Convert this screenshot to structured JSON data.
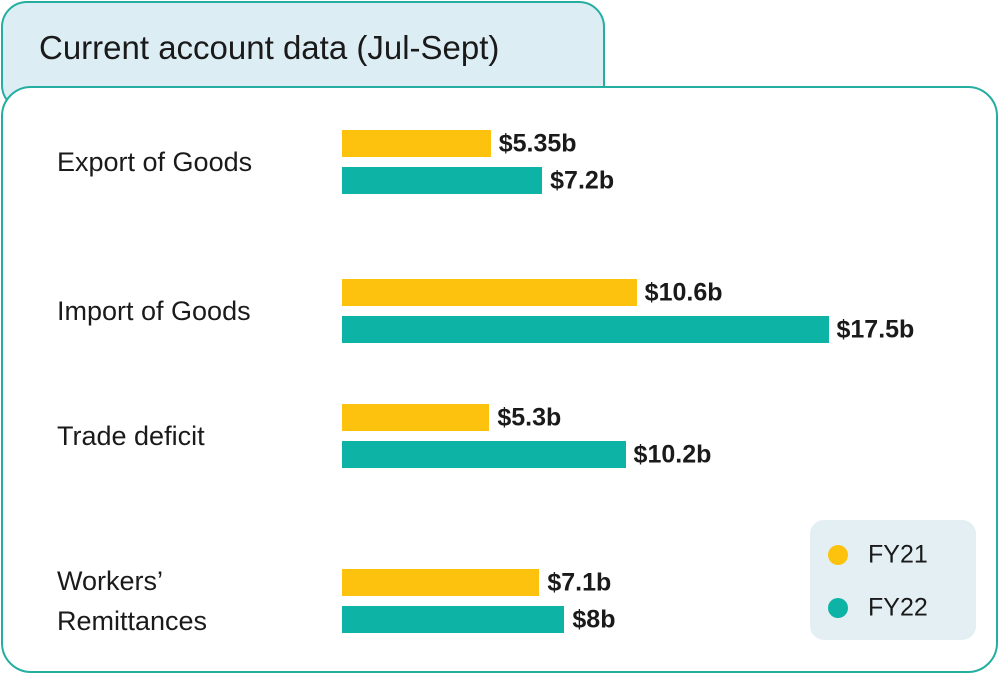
{
  "chart_data": {
    "type": "bar",
    "orientation": "horizontal",
    "title": "Current account data (Jul-Sept)",
    "categories": [
      "Export of Goods",
      "Import of Goods",
      "Trade deficit",
      "Workers’ Remittances"
    ],
    "series": [
      {
        "name": "FY21",
        "color": "#fcc20e",
        "values": [
          5.35,
          10.6,
          5.3,
          7.1
        ],
        "value_labels": [
          "$5.35b",
          "$10.6b",
          "$5.3b",
          "$7.1b"
        ]
      },
      {
        "name": "FY22",
        "color": "#0db3a5",
        "values": [
          7.2,
          17.5,
          10.2,
          8
        ],
        "value_labels": [
          "$7.2b",
          "$17.5b",
          "$10.2b",
          "$8b"
        ]
      }
    ]
  }
}
